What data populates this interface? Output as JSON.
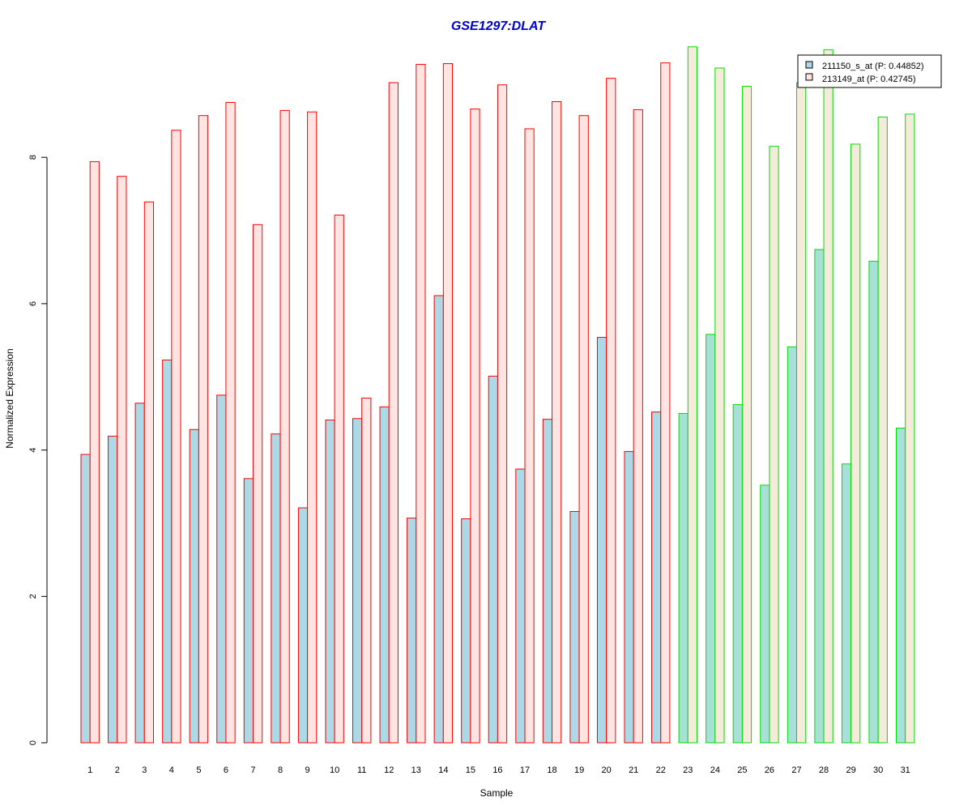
{
  "chart_data": {
    "type": "bar",
    "title": "GSE1297:DLAT",
    "xlabel": "Sample",
    "ylabel": "Normalized Expression",
    "ylim": [
      0,
      9.6
    ],
    "yticks": [
      0,
      2,
      4,
      6,
      8
    ],
    "grid": false,
    "legend_position": "top-right",
    "categories": [
      "1",
      "2",
      "3",
      "4",
      "5",
      "6",
      "7",
      "8",
      "9",
      "10",
      "11",
      "12",
      "13",
      "14",
      "15",
      "16",
      "17",
      "18",
      "19",
      "20",
      "21",
      "22",
      "23",
      "24",
      "25",
      "26",
      "27",
      "28",
      "29",
      "30",
      "31"
    ],
    "group_colors": [
      "red",
      "red",
      "red",
      "red",
      "red",
      "red",
      "red",
      "red",
      "red",
      "red",
      "red",
      "red",
      "red",
      "red",
      "red",
      "red",
      "red",
      "red",
      "red",
      "red",
      "red",
      "red",
      "green",
      "green",
      "green",
      "green",
      "green",
      "green",
      "green",
      "green",
      "green"
    ],
    "series": [
      {
        "name": "211150_s_at (P: 0.44852)",
        "values": [
          3.94,
          4.19,
          4.64,
          5.23,
          4.28,
          4.75,
          3.61,
          4.22,
          3.21,
          4.41,
          4.43,
          4.59,
          3.07,
          6.11,
          3.06,
          5.01,
          3.74,
          4.42,
          3.16,
          5.54,
          3.98,
          4.52,
          4.5,
          5.58,
          4.62,
          3.52,
          5.41,
          6.74,
          3.81,
          6.58,
          4.3
        ]
      },
      {
        "name": "213149_at (P: 0.42745)",
        "values": [
          7.94,
          7.74,
          7.39,
          8.37,
          8.57,
          8.75,
          7.08,
          8.64,
          8.62,
          7.21,
          4.71,
          9.02,
          9.27,
          9.28,
          8.66,
          8.99,
          8.39,
          8.76,
          8.57,
          9.08,
          8.65,
          9.29,
          9.51,
          9.22,
          8.97,
          8.15,
          9.02,
          9.47,
          8.18,
          8.55,
          8.59
        ]
      }
    ]
  },
  "colors": {
    "title": "#0000cc",
    "fill_series_1_red": "#add8e6",
    "fill_series_2_red": "#ffe4e1",
    "fill_series_1_green": "#a6e0d6",
    "fill_series_2_green": "#f5ebdb",
    "border_red": "#ff0000",
    "border_green": "#00dd00",
    "axis": "#000000"
  }
}
